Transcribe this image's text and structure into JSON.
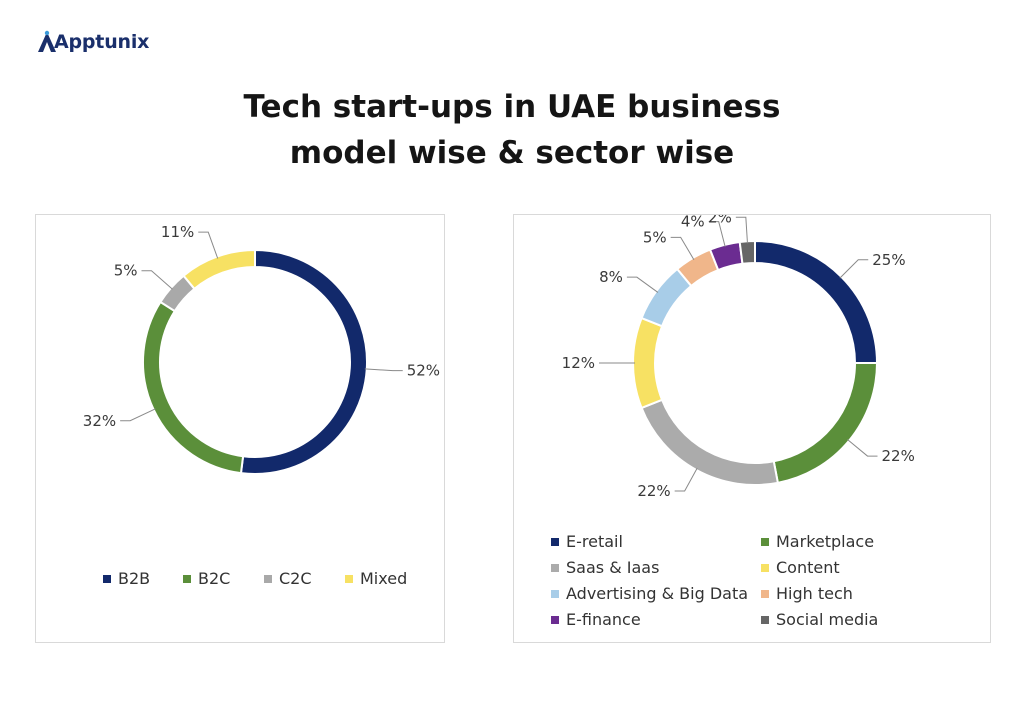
{
  "brand": {
    "name": "Apptunix"
  },
  "title": {
    "line1": "Tech start-ups in UAE business",
    "line2": "model wise & sector wise"
  },
  "chart_data": [
    {
      "type": "donut",
      "categories": [
        "B2B",
        "B2C",
        "C2C",
        "Mixed"
      ],
      "values": [
        52,
        32,
        5,
        11
      ],
      "labels": [
        "52%",
        "32%",
        "5%",
        "11%"
      ],
      "colors": [
        "#12296b",
        "#5b8f3a",
        "#a9a9a9",
        "#f7e163"
      ],
      "legend": "bottom"
    },
    {
      "type": "donut",
      "categories": [
        "E-retail",
        "Marketplace",
        "Saas & Iaas",
        "Content",
        "Advertising & Big Data",
        "High tech",
        "E-finance",
        "Social media"
      ],
      "values": [
        25,
        22,
        22,
        12,
        8,
        5,
        4,
        2
      ],
      "labels": [
        "25%",
        "22%",
        "22%",
        "12%",
        "8%",
        "5%",
        "4%",
        "2%"
      ],
      "colors": [
        "#12296b",
        "#5b8f3a",
        "#ababab",
        "#f7e163",
        "#a8cde8",
        "#f0b68a",
        "#6b2c91",
        "#666666"
      ],
      "legend": "bottom"
    }
  ]
}
